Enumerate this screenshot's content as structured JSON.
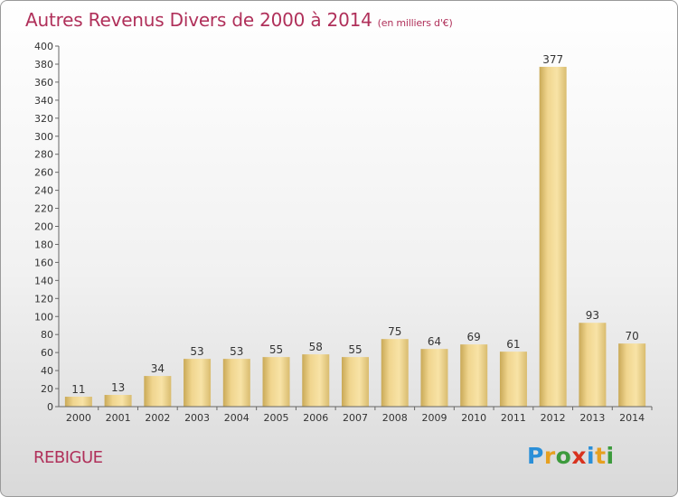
{
  "header": {
    "title": "Autres Revenus Divers de 2000 à 2014",
    "subtitle": "(en milliers d'€)"
  },
  "footer": {
    "town": "REBIGUE",
    "brand": "Proxiti"
  },
  "colors": {
    "title": "#b0305a",
    "bar_light": "#f6df9c",
    "bar_dark": "#c9a957",
    "axis": "#555555"
  },
  "chart_data": {
    "type": "bar",
    "title": "Autres Revenus Divers de 2000 à 2014",
    "subtitle": "(en milliers d'€)",
    "xlabel": "",
    "ylabel": "",
    "categories": [
      "2000",
      "2001",
      "2002",
      "2003",
      "2004",
      "2005",
      "2006",
      "2007",
      "2008",
      "2009",
      "2010",
      "2011",
      "2012",
      "2013",
      "2014"
    ],
    "values": [
      11,
      13,
      34,
      53,
      53,
      55,
      58,
      55,
      75,
      64,
      69,
      61,
      377,
      93,
      70
    ],
    "ylim": [
      0,
      400
    ],
    "yticks": [
      0,
      20,
      40,
      60,
      80,
      100,
      120,
      140,
      160,
      180,
      200,
      220,
      240,
      260,
      280,
      300,
      320,
      340,
      360,
      380,
      400
    ],
    "grid": false,
    "data_labels": true
  }
}
